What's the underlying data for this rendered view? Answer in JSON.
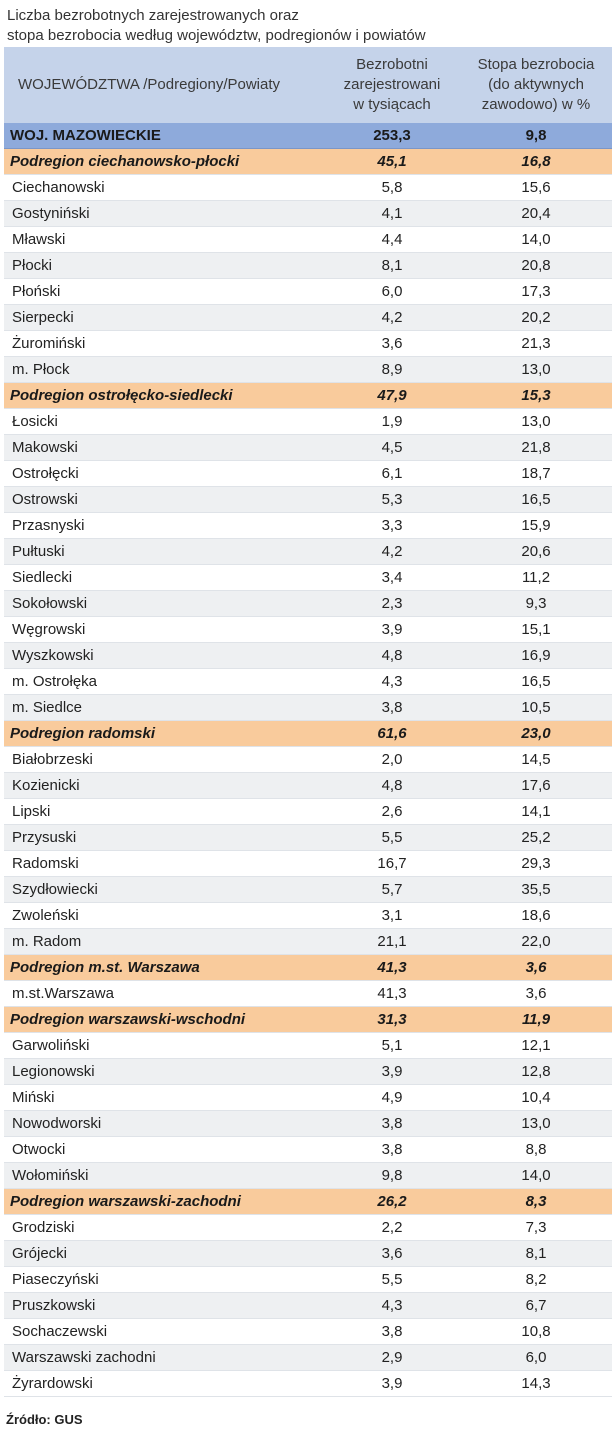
{
  "title_lines": [
    "Liczba bezrobotnych zarejestrowanych oraz",
    "stopa bezrobocia według województw, podregionów  i  powiatów"
  ],
  "header": {
    "col1": "WOJEWÓDZTWA /Podregiony/Powiaty",
    "col2": [
      "Bezrobotni",
      "zarejestrowani",
      "w tysiącach"
    ],
    "col3": [
      "Stopa bezrobocia",
      "(do aktywnych",
      "zawodowo) w %"
    ]
  },
  "rows": [
    {
      "type": "woj",
      "name": "WOJ. MAZOWIECKIE",
      "unemployed": "253,3",
      "rate": "9,8"
    },
    {
      "type": "sub",
      "name": "Podregion ciechanowsko-płocki",
      "unemployed": "45,1",
      "rate": "16,8"
    },
    {
      "type": "pow",
      "name": "Ciechanowski",
      "unemployed": "5,8",
      "rate": "15,6"
    },
    {
      "type": "pow",
      "name": "Gostyniński",
      "unemployed": "4,1",
      "rate": "20,4"
    },
    {
      "type": "pow",
      "name": "Mławski",
      "unemployed": "4,4",
      "rate": "14,0"
    },
    {
      "type": "pow",
      "name": "Płocki",
      "unemployed": "8,1",
      "rate": "20,8"
    },
    {
      "type": "pow",
      "name": "Płoński",
      "unemployed": "6,0",
      "rate": "17,3"
    },
    {
      "type": "pow",
      "name": "Sierpecki",
      "unemployed": "4,2",
      "rate": "20,2"
    },
    {
      "type": "pow",
      "name": "Żuromiński",
      "unemployed": "3,6",
      "rate": "21,3"
    },
    {
      "type": "pow",
      "name": "m. Płock",
      "unemployed": "8,9",
      "rate": "13,0"
    },
    {
      "type": "sub",
      "name": "Podregion ostrołęcko-siedlecki",
      "unemployed": "47,9",
      "rate": "15,3"
    },
    {
      "type": "pow",
      "name": "Łosicki",
      "unemployed": "1,9",
      "rate": "13,0"
    },
    {
      "type": "pow",
      "name": "Makowski",
      "unemployed": "4,5",
      "rate": "21,8"
    },
    {
      "type": "pow",
      "name": "Ostrołęcki",
      "unemployed": "6,1",
      "rate": "18,7"
    },
    {
      "type": "pow",
      "name": "Ostrowski",
      "unemployed": "5,3",
      "rate": "16,5"
    },
    {
      "type": "pow",
      "name": "Przasnyski",
      "unemployed": "3,3",
      "rate": "15,9"
    },
    {
      "type": "pow",
      "name": "Pułtuski",
      "unemployed": "4,2",
      "rate": "20,6"
    },
    {
      "type": "pow",
      "name": "Siedlecki",
      "unemployed": "3,4",
      "rate": "11,2"
    },
    {
      "type": "pow",
      "name": "Sokołowski",
      "unemployed": "2,3",
      "rate": "9,3"
    },
    {
      "type": "pow",
      "name": "Węgrowski",
      "unemployed": "3,9",
      "rate": "15,1"
    },
    {
      "type": "pow",
      "name": "Wyszkowski",
      "unemployed": "4,8",
      "rate": "16,9"
    },
    {
      "type": "pow",
      "name": "m. Ostrołęka",
      "unemployed": "4,3",
      "rate": "16,5"
    },
    {
      "type": "pow",
      "name": "m. Siedlce",
      "unemployed": "3,8",
      "rate": "10,5"
    },
    {
      "type": "sub",
      "name": "Podregion radomski",
      "unemployed": "61,6",
      "rate": "23,0"
    },
    {
      "type": "pow",
      "name": "Białobrzeski",
      "unemployed": "2,0",
      "rate": "14,5"
    },
    {
      "type": "pow",
      "name": "Kozienicki",
      "unemployed": "4,8",
      "rate": "17,6"
    },
    {
      "type": "pow",
      "name": "Lipski",
      "unemployed": "2,6",
      "rate": "14,1"
    },
    {
      "type": "pow",
      "name": "Przysuski",
      "unemployed": "5,5",
      "rate": "25,2"
    },
    {
      "type": "pow",
      "name": "Radomski",
      "unemployed": "16,7",
      "rate": "29,3"
    },
    {
      "type": "pow",
      "name": "Szydłowiecki",
      "unemployed": "5,7",
      "rate": "35,5"
    },
    {
      "type": "pow",
      "name": "Zwoleński",
      "unemployed": "3,1",
      "rate": "18,6"
    },
    {
      "type": "pow",
      "name": "m. Radom",
      "unemployed": "21,1",
      "rate": "22,0"
    },
    {
      "type": "sub",
      "name": "Podregion m.st. Warszawa",
      "unemployed": "41,3",
      "rate": "3,6"
    },
    {
      "type": "pow",
      "name": "m.st.Warszawa",
      "unemployed": "41,3",
      "rate": "3,6"
    },
    {
      "type": "sub",
      "name": "Podregion warszawski-wschodni",
      "unemployed": "31,3",
      "rate": "11,9"
    },
    {
      "type": "pow",
      "name": "Garwoliński",
      "unemployed": "5,1",
      "rate": "12,1"
    },
    {
      "type": "pow",
      "name": "Legionowski",
      "unemployed": "3,9",
      "rate": "12,8"
    },
    {
      "type": "pow",
      "name": "Miński",
      "unemployed": "4,9",
      "rate": "10,4"
    },
    {
      "type": "pow",
      "name": "Nowodworski",
      "unemployed": "3,8",
      "rate": "13,0"
    },
    {
      "type": "pow",
      "name": "Otwocki",
      "unemployed": "3,8",
      "rate": "8,8"
    },
    {
      "type": "pow",
      "name": "Wołomiński",
      "unemployed": "9,8",
      "rate": "14,0"
    },
    {
      "type": "sub",
      "name": "Podregion warszawski-zachodni",
      "unemployed": "26,2",
      "rate": "8,3"
    },
    {
      "type": "pow",
      "name": "Grodziski",
      "unemployed": "2,2",
      "rate": "7,3"
    },
    {
      "type": "pow",
      "name": "Grójecki",
      "unemployed": "3,6",
      "rate": "8,1"
    },
    {
      "type": "pow",
      "name": "Piaseczyński",
      "unemployed": "5,5",
      "rate": "8,2"
    },
    {
      "type": "pow",
      "name": "Pruszkowski",
      "unemployed": "4,3",
      "rate": "6,7"
    },
    {
      "type": "pow",
      "name": "Sochaczewski",
      "unemployed": "3,8",
      "rate": "10,8"
    },
    {
      "type": "pow",
      "name": "Warszawski  zachodni",
      "unemployed": "2,9",
      "rate": "6,0"
    },
    {
      "type": "pow",
      "name": "Żyrardowski",
      "unemployed": "3,9",
      "rate": "14,3"
    }
  ],
  "source": "Źródło: GUS",
  "colors": {
    "header_bg": "#c5d3ea",
    "woj_bg": "#8eaadb",
    "subregion_bg": "#f9cb9c",
    "stripe_bg": "#eef0f2"
  }
}
